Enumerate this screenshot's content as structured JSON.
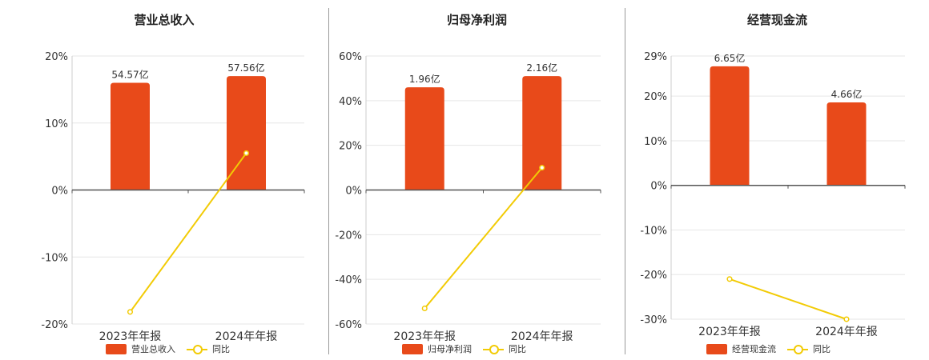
{
  "legend": {
    "line_label": "同比"
  },
  "colors": {
    "bar": "#E84A1A",
    "line": "#F2CB05"
  },
  "chart_data": [
    {
      "type": "bar",
      "title": "营业总收入",
      "categories": [
        "2023年年报",
        "2024年年报"
      ],
      "series": [
        {
          "name": "营业总收入",
          "type": "bar",
          "values": [
            16.0,
            17.0
          ],
          "labels": [
            "54.57亿",
            "57.56亿"
          ]
        },
        {
          "name": "同比",
          "type": "line",
          "values": [
            -18.2,
            5.5
          ]
        }
      ],
      "yticks": [
        20,
        10,
        0,
        -10,
        -20
      ],
      "ytick_labels": [
        "20%",
        "10%",
        "0%",
        "-10%",
        "-20%"
      ],
      "ylim": [
        -20,
        20
      ]
    },
    {
      "type": "bar",
      "title": "归母净利润",
      "categories": [
        "2023年年报",
        "2024年年报"
      ],
      "series": [
        {
          "name": "归母净利润",
          "type": "bar",
          "values": [
            46.0,
            51.0
          ],
          "labels": [
            "1.96亿",
            "2.16亿"
          ]
        },
        {
          "name": "同比",
          "type": "line",
          "values": [
            -53.0,
            10.0
          ]
        }
      ],
      "yticks": [
        60,
        40,
        20,
        0,
        -20,
        -40,
        -60
      ],
      "ytick_labels": [
        "60%",
        "40%",
        "20%",
        "0%",
        "-20%",
        "-40%",
        "-60%"
      ],
      "ylim": [
        -60,
        60
      ]
    },
    {
      "type": "bar",
      "title": "经营现金流",
      "categories": [
        "2023年年报",
        "2024年年报"
      ],
      "series": [
        {
          "name": "经营现金流",
          "type": "bar",
          "values": [
            26.7,
            18.6
          ],
          "labels": [
            "6.65亿",
            "4.66亿"
          ]
        },
        {
          "name": "同比",
          "type": "line",
          "values": [
            -21.0,
            -30.0
          ]
        }
      ],
      "yticks": [
        29,
        20,
        10,
        0,
        -10,
        -20,
        -30
      ],
      "ytick_labels": [
        "29%",
        "20%",
        "10%",
        "0%",
        "-10%",
        "-20%",
        "-30%"
      ],
      "ylim": [
        -30,
        29
      ]
    }
  ]
}
